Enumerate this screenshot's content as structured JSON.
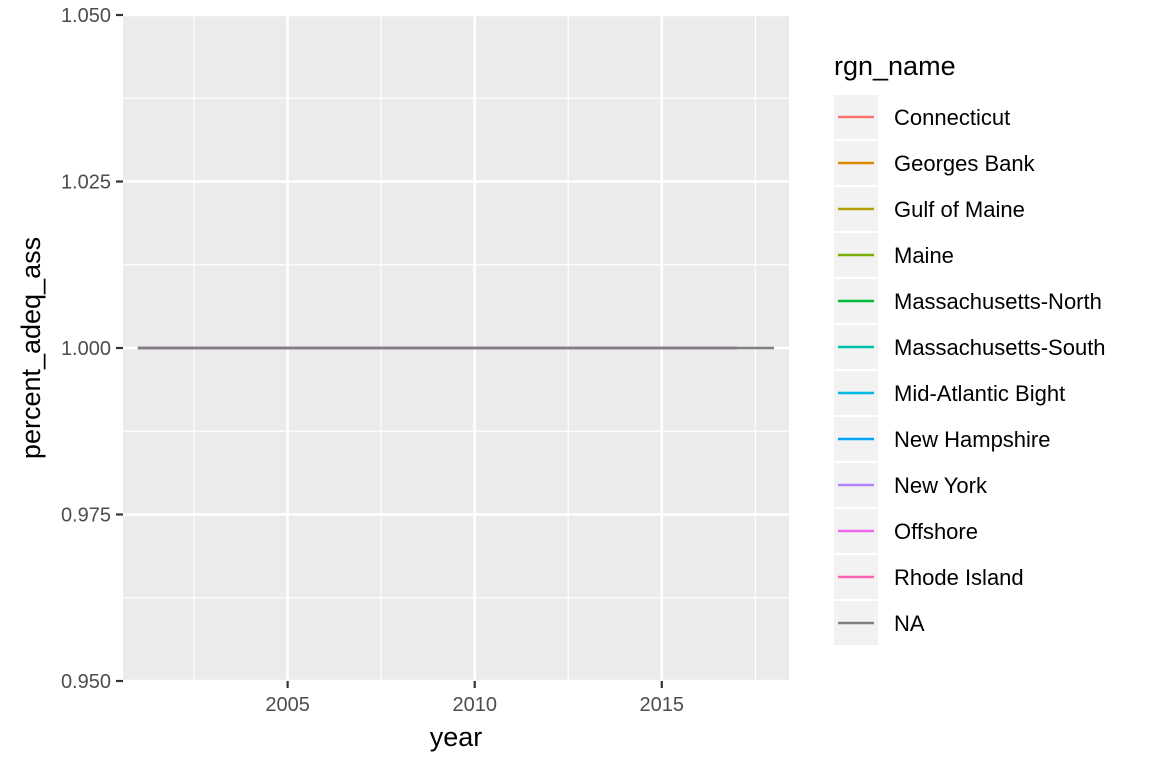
{
  "chart_data": {
    "type": "line",
    "xlabel": "year",
    "ylabel": "percent_adeq_ass",
    "xlim": [
      2000.6,
      2018.4
    ],
    "ylim": [
      0.95,
      1.05
    ],
    "x_ticks": [
      2005,
      2010,
      2015
    ],
    "x_tick_labels": [
      "2005",
      "2010",
      "2015"
    ],
    "y_ticks": [
      0.95,
      0.975,
      1.0,
      1.025,
      1.05
    ],
    "y_tick_labels": [
      "0.950",
      "0.975",
      "1.000",
      "1.025",
      "1.050"
    ],
    "grid": true,
    "legend": {
      "title": "rgn_name",
      "placement": "right",
      "entries": [
        {
          "label": "Connecticut",
          "color": "#F8766D"
        },
        {
          "label": "Georges Bank",
          "color": "#DE8C00"
        },
        {
          "label": "Gulf of Maine",
          "color": "#B79F00"
        },
        {
          "label": "Maine",
          "color": "#7CAE00"
        },
        {
          "label": "Massachusetts-North",
          "color": "#00BA38"
        },
        {
          "label": "Massachusetts-South",
          "color": "#00C1A9"
        },
        {
          "label": "Mid-Atlantic Bight",
          "color": "#00BAE0"
        },
        {
          "label": "New Hampshire",
          "color": "#00A5FF"
        },
        {
          "label": "New York",
          "color": "#B385FF"
        },
        {
          "label": "Offshore",
          "color": "#EF67EB"
        },
        {
          "label": "Rhode Island",
          "color": "#FF63B6"
        },
        {
          "label": "NA",
          "color": "#808080"
        }
      ]
    },
    "series": [
      {
        "name": "Connecticut",
        "color": "#F8766D",
        "x": [
          2001,
          2017
        ],
        "y": [
          1.0,
          1.0
        ]
      },
      {
        "name": "Georges Bank",
        "color": "#DE8C00",
        "x": [
          2001,
          2017
        ],
        "y": [
          1.0,
          1.0
        ]
      },
      {
        "name": "Gulf of Maine",
        "color": "#B79F00",
        "x": [
          2001,
          2017
        ],
        "y": [
          1.0,
          1.0
        ]
      },
      {
        "name": "Maine",
        "color": "#7CAE00",
        "x": [
          2001,
          2017
        ],
        "y": [
          1.0,
          1.0
        ]
      },
      {
        "name": "Massachusetts-North",
        "color": "#00BA38",
        "x": [
          2001,
          2017
        ],
        "y": [
          1.0,
          1.0
        ]
      },
      {
        "name": "Massachusetts-South",
        "color": "#00C1A9",
        "x": [
          2001,
          2017
        ],
        "y": [
          1.0,
          1.0
        ]
      },
      {
        "name": "Mid-Atlantic Bight",
        "color": "#00BAE0",
        "x": [
          2001,
          2017
        ],
        "y": [
          1.0,
          1.0
        ]
      },
      {
        "name": "New Hampshire",
        "color": "#00A5FF",
        "x": [
          2001,
          2017
        ],
        "y": [
          1.0,
          1.0
        ]
      },
      {
        "name": "New York",
        "color": "#B385FF",
        "x": [
          2001,
          2017
        ],
        "y": [
          1.0,
          1.0
        ]
      },
      {
        "name": "Offshore",
        "color": "#EF67EB",
        "x": [
          2001,
          2017
        ],
        "y": [
          1.0,
          1.0
        ]
      },
      {
        "name": "Rhode Island",
        "color": "#FF63B6",
        "x": [
          2001,
          2017
        ],
        "y": [
          1.0,
          1.0
        ]
      },
      {
        "name": "NA",
        "color": "#808080",
        "x": [
          2001,
          2018
        ],
        "y": [
          1.0,
          1.0
        ]
      }
    ]
  }
}
